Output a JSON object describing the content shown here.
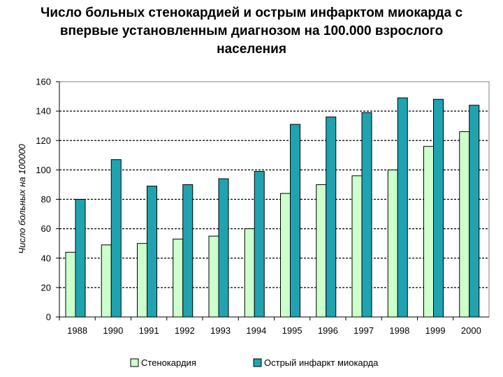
{
  "title_lines": [
    "Число больных стенокардией и острым инфарктом миокарда с",
    "впервые установленным диагнозом на 100.000 взрослого",
    "населения"
  ],
  "chart_data": {
    "type": "bar",
    "title": "Число больных стенокардией и острым инфарктом миокарда с впервые установленным диагнозом на 100.000 взрослого населения",
    "xlabel": "",
    "ylabel": "Число больных на 100000",
    "ylim": [
      0,
      160
    ],
    "yticks": [
      0,
      20,
      40,
      60,
      80,
      100,
      120,
      140,
      160
    ],
    "grid": "dashed horizontal major gridlines",
    "legend_position": "bottom",
    "categories": [
      "1988",
      "1990",
      "1991",
      "1992",
      "1993",
      "1994",
      "1995",
      "1996",
      "1997",
      "1998",
      "1999",
      "2000"
    ],
    "series": [
      {
        "name": "Стенокардия",
        "color": "#ccffcc",
        "values": [
          44,
          49,
          50,
          53,
          55,
          60,
          84,
          90,
          96,
          100,
          116,
          126
        ]
      },
      {
        "name": "Острый инфаркт миокарда",
        "color": "#1fa3b1",
        "values": [
          80,
          107,
          89,
          90,
          94,
          99,
          131,
          136,
          139,
          149,
          148,
          144
        ]
      }
    ]
  }
}
